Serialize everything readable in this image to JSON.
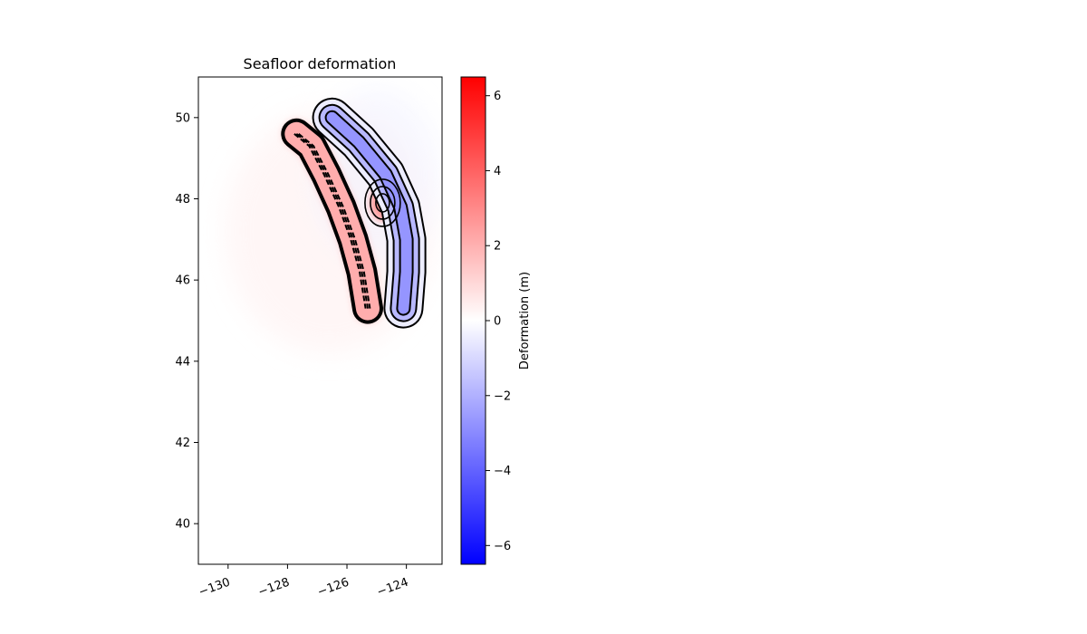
{
  "chart_data": {
    "type": "heatmap",
    "title": "Seafloor deformation",
    "xlabel": "",
    "ylabel": "",
    "xlim": [
      -131,
      -122.8
    ],
    "ylim": [
      39,
      51
    ],
    "x_ticks": [
      -130,
      -128,
      -126,
      -124
    ],
    "x_tick_labels": [
      "−130",
      "−128",
      "−126",
      "−124"
    ],
    "y_ticks": [
      40,
      42,
      44,
      46,
      48,
      50
    ],
    "y_tick_labels": [
      "40",
      "42",
      "44",
      "46",
      "48",
      "50"
    ],
    "grid": false,
    "colormap": "bwr",
    "colorbar": {
      "label": "Deformation (m)",
      "vmin": -6.5,
      "vmax": 6.5,
      "ticks": [
        -6,
        -4,
        -2,
        0,
        2,
        4,
        6
      ],
      "tick_labels": [
        "−6",
        "−4",
        "−2",
        "0",
        "2",
        "4",
        "6"
      ],
      "color_min": "#0000ff",
      "color_mid": "#ffffff",
      "color_max": "#ff0000"
    },
    "contour_color": "#000000",
    "fields": {
      "uplift_zone": {
        "peak_value": 3.5,
        "path": [
          [
            -127.7,
            49.6
          ],
          [
            -127.2,
            49.3
          ],
          [
            -126.7,
            48.6
          ],
          [
            -126.2,
            47.8
          ],
          [
            -125.8,
            47.0
          ],
          [
            -125.5,
            46.2
          ],
          [
            -125.3,
            45.3
          ]
        ]
      },
      "uplift_secondary_peak": {
        "lon": -124.8,
        "lat": 47.9,
        "value": 2.5
      },
      "subsidence_zone": {
        "min_value": -3.0,
        "path": [
          [
            -126.5,
            50.0
          ],
          [
            -125.6,
            49.4
          ],
          [
            -124.7,
            48.6
          ],
          [
            -124.2,
            47.8
          ],
          [
            -124.0,
            47.0
          ],
          [
            -124.0,
            46.2
          ],
          [
            -124.1,
            45.3
          ]
        ]
      }
    }
  }
}
